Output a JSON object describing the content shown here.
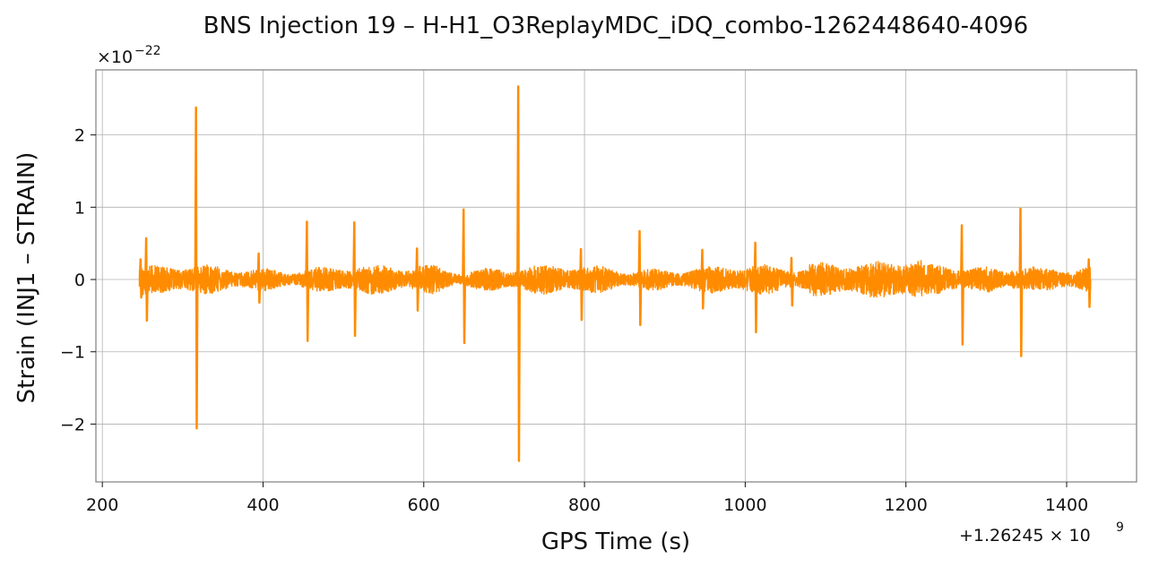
{
  "chart_data": {
    "type": "line",
    "title": "BNS Injection 19 – H-H1_O3ReplayMDC_iDQ_combo-1262448640-4096",
    "xlabel": "GPS Time (s)",
    "ylabel": "Strain (INJ1 – STRAIN)",
    "x_offset_label": "+1.26245 × 10",
    "x_offset_exponent": "9",
    "y_scale_label": "×10",
    "y_scale_exponent": "−22",
    "xlim": [
      192,
      1487
    ],
    "ylim": [
      -2.8,
      2.9
    ],
    "x_ticks": [
      200,
      400,
      600,
      800,
      1000,
      1200,
      1400
    ],
    "x_tick_labels": [
      "200",
      "400",
      "600",
      "800",
      "1000",
      "1200",
      "1400"
    ],
    "y_ticks": [
      -2,
      -1,
      0,
      1,
      2
    ],
    "y_tick_labels": [
      "−2",
      "−1",
      "0",
      "1",
      "2"
    ],
    "grid": true,
    "series": [
      {
        "color": "#ff8c00",
        "x_range": [
          246,
          1430
        ],
        "baseline_amplitude": 0.14,
        "spikes": [
          {
            "x": 248,
            "max": 0.28,
            "min": -0.25
          },
          {
            "x": 255,
            "max": 0.57,
            "min": -0.57
          },
          {
            "x": 317,
            "max": 2.38,
            "min": -2.06
          },
          {
            "x": 395,
            "max": 0.36,
            "min": -0.32
          },
          {
            "x": 455,
            "max": 0.8,
            "min": -0.85
          },
          {
            "x": 514,
            "max": 0.79,
            "min": -0.78
          },
          {
            "x": 592,
            "max": 0.43,
            "min": -0.43
          },
          {
            "x": 650,
            "max": 0.97,
            "min": -0.88
          },
          {
            "x": 718,
            "max": 2.67,
            "min": -2.51
          },
          {
            "x": 796,
            "max": 0.42,
            "min": -0.56
          },
          {
            "x": 869,
            "max": 0.67,
            "min": -0.63
          },
          {
            "x": 947,
            "max": 0.41,
            "min": -0.4
          },
          {
            "x": 1013,
            "max": 0.51,
            "min": -0.73
          },
          {
            "x": 1058,
            "max": 0.3,
            "min": -0.36
          },
          {
            "x": 1270,
            "max": 0.75,
            "min": -0.9
          },
          {
            "x": 1343,
            "max": 0.98,
            "min": -1.06
          },
          {
            "x": 1428,
            "max": 0.28,
            "min": -0.38
          }
        ]
      }
    ]
  }
}
